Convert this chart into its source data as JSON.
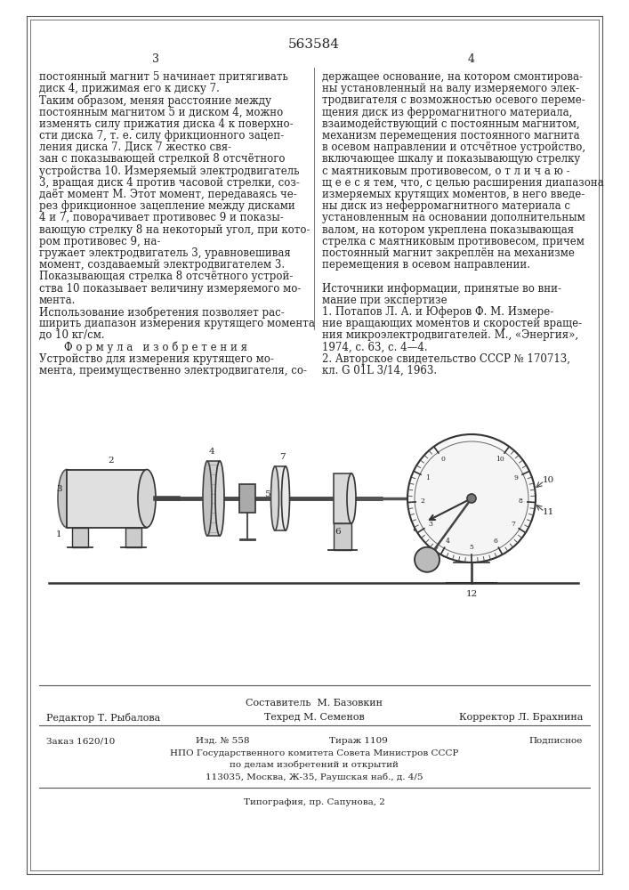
{
  "patent_number": "563584",
  "page_col_left": "3",
  "page_col_right": "4",
  "bg_color": "#ffffff",
  "text_color": "#222222",
  "line_color": "#333333",
  "col_left_text": [
    "постоянный магнит 5 начинает притягивать",
    "диск 4, прижимая его к диску 7.",
    "Таким образом, меняя расстояние между",
    "постоянным магнитом 5 и диском 4, можно",
    "изменять силу прижатия диска 4 к поверхно-",
    "сти диска 7, т. е. силу фрикционного зацеп-",
    "ления диска 7. Диск 7 жестко свя-",
    "зан с показывающей стрелкой 8 отсчётного",
    "устройства 10. Измеряемый электродвигатель",
    "3, вращая диск 4 против часовой стрелки, соз-",
    "даёт момент M. Этот момент, передаваясь че-",
    "рез фрикционное зацепление между дисками",
    "4 и 7, поворачивает противовес 9 и показы-",
    "вающую стрелку 8 на некоторый угол, при кото-",
    "ром противовес 9, на-",
    "гружает электродвигатель 3, уравновешивая",
    "момент, создаваемый электродвигателем 3.",
    "Показывающая стрелка 8 отсчётного устрой-",
    "ства 10 показывает величину измеряемого мо-",
    "мента.",
    "Использование изобретения позволяет рас-",
    "ширить диапазон измерения крутящего момента",
    "до 10 кг/см.",
    "Ф о р м у л а   и з о б р е т е н и я",
    "Устройство для измерения крутящего мо-",
    "мента, преимущественно электродвигателя, со-"
  ],
  "formula_heading_idx": 23,
  "col_right_text": [
    "держащее основание, на котором смонтирова-",
    "ны установленный на валу измеряемого элек-",
    "тродвигателя с возможностью осевого переме-",
    "щения диск из ферромагнитного материала,",
    "взаимодействующий с постоянным магнитом,",
    "механизм перемещения постоянного магнита",
    "в осевом направлении и отсчётное устройство,",
    "включающее шкалу и показывающую стрелку",
    "с маятниковым противовесом, о т л и ч а ю -",
    "щ е е с я тем, что, с целью расширения диапазона",
    "измеряемых крутящих моментов, в него введе-",
    "ны диск из неферромагнитного материала с",
    "установленным на основании дополнительным",
    "валом, на котором укреплена показывающая",
    "стрелка с маятниковым противовесом, причем",
    "постоянный магнит закреплён на механизме",
    "перемещения в осевом направлении.",
    "",
    "Источники информации, принятые во вни-",
    "мание при экспертизе",
    "1. Потапов Л. А. и Юферов Ф. М. Измере-",
    "ние вращающих моментов и скоростей враще-",
    "ния микроэлектродвигателей. М., «Энергия»,",
    "1974, с. 63, с. 4—4.",
    "2. Авторское свидетельство СССР № 170713,",
    "кл. G 01L 3/14, 1963."
  ],
  "footer_line1": "Составитель  М. Базовкин",
  "footer_line2_left": "Редактор Т. Рыбалова",
  "footer_line2_mid": "Техред М. Семенов",
  "footer_line2_right": "Корректор Л. Брахнина",
  "footer_order": "Заказ 1620/10",
  "footer_izd": "Изд. № 558",
  "footer_tirazh": "Тираж 1109",
  "footer_podpisnoe": "Подписное",
  "footer_npo": "НПО Государственного комитета Совета Министров СССР",
  "footer_dela": "по делам изобретений и открытий",
  "footer_address": "113035, Москва, Ж-35, Раушская наб., д. 4/5",
  "footer_tipografia": "Типография, пр. Сапунова, 2"
}
